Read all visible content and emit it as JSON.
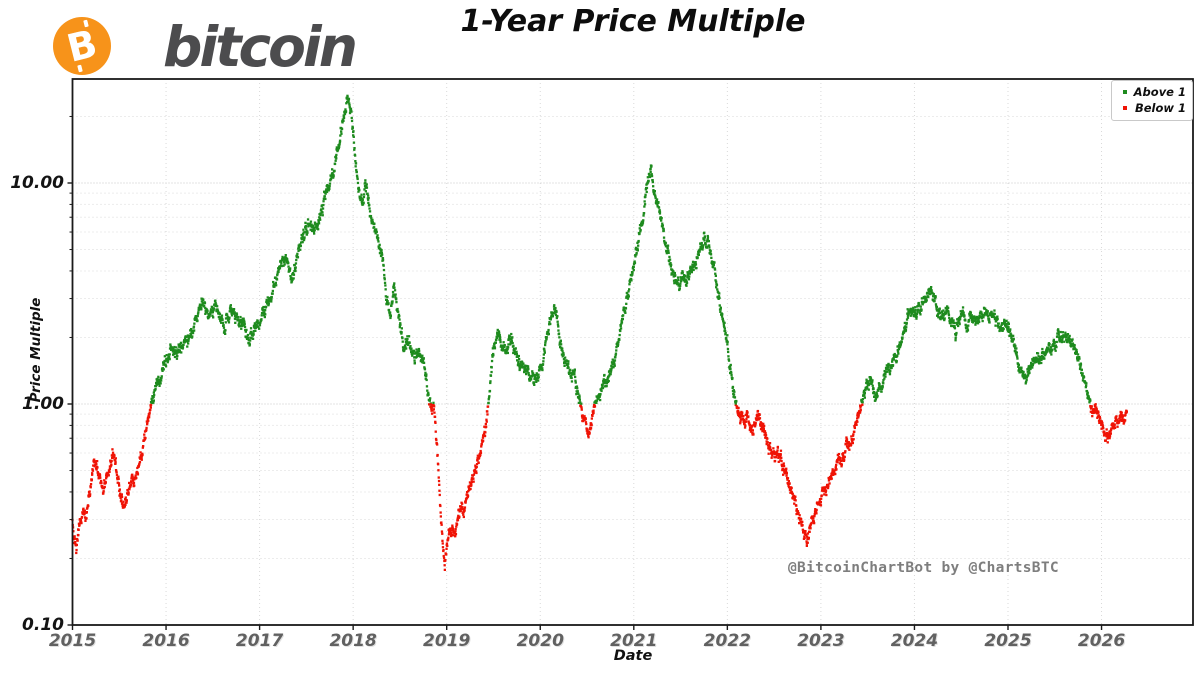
{
  "header": {
    "logo": {
      "symbol": "B",
      "brand": "bitcoin"
    },
    "title": "1-Year Price Multiple"
  },
  "watermark": "@BitcoinChartBot by @ChartsBTC",
  "colors": {
    "green": "#1e8b1e",
    "red": "#ef1305",
    "coin_orange": "#f7931a",
    "brand_text": "#4c4c4e",
    "axis": "#1a1a1a",
    "grid_major": "#c6c6c6",
    "grid_minor": "#d9d9d9",
    "year_label": "#616161",
    "value_label": "#141414",
    "watermark_gray": "#7e7e7e"
  },
  "chart_data": {
    "type": "scatter",
    "title": "1-Year Price Multiple",
    "xlabel": "Date",
    "ylabel": "Price Multiple",
    "y_scale": "log",
    "grid": true,
    "legend_position": "upper right",
    "legend": [
      {
        "label": "Above 1",
        "color": "#1e8b1e"
      },
      {
        "label": "Below 1",
        "color": "#ef1305"
      }
    ],
    "x_ticks": [
      2015,
      2016,
      2017,
      2018,
      2019,
      2020,
      2021,
      2022,
      2023,
      2024,
      2025,
      2026
    ],
    "y_ticks": [
      0.1,
      1.0,
      10.0
    ],
    "y_tick_labels": [
      "0.10",
      "1.00",
      "10.00"
    ],
    "xlim": [
      2015,
      2026.98
    ],
    "ylim": [
      0.1,
      30
    ],
    "series_rule": "point green if multiple >= 1, red if below 1",
    "sampling": "envelope of daily 1-year price-multiple scatter, sampled ~biweekly [year, multiple]",
    "points": [
      [
        2015.0,
        0.3
      ],
      [
        2015.02,
        0.24
      ],
      [
        2015.04,
        0.22
      ],
      [
        2015.06,
        0.27
      ],
      [
        2015.09,
        0.31
      ],
      [
        2015.12,
        0.33
      ],
      [
        2015.15,
        0.31
      ],
      [
        2015.18,
        0.4
      ],
      [
        2015.21,
        0.48
      ],
      [
        2015.24,
        0.56
      ],
      [
        2015.27,
        0.5
      ],
      [
        2015.3,
        0.44
      ],
      [
        2015.33,
        0.42
      ],
      [
        2015.36,
        0.47
      ],
      [
        2015.4,
        0.54
      ],
      [
        2015.43,
        0.59
      ],
      [
        2015.46,
        0.53
      ],
      [
        2015.5,
        0.43
      ],
      [
        2015.53,
        0.37
      ],
      [
        2015.56,
        0.35
      ],
      [
        2015.6,
        0.4
      ],
      [
        2015.63,
        0.45
      ],
      [
        2015.66,
        0.43
      ],
      [
        2015.7,
        0.5
      ],
      [
        2015.74,
        0.6
      ],
      [
        2015.78,
        0.73
      ],
      [
        2015.81,
        0.88
      ],
      [
        2015.84,
        1.02
      ],
      [
        2015.87,
        1.15
      ],
      [
        2015.9,
        1.3
      ],
      [
        2015.93,
        1.25
      ],
      [
        2015.96,
        1.4
      ],
      [
        2016.0,
        1.55
      ],
      [
        2016.04,
        1.75
      ],
      [
        2016.08,
        1.85
      ],
      [
        2016.12,
        1.65
      ],
      [
        2016.16,
        1.75
      ],
      [
        2016.2,
        1.85
      ],
      [
        2016.25,
        2.0
      ],
      [
        2016.3,
        2.2
      ],
      [
        2016.35,
        2.6
      ],
      [
        2016.38,
        2.95
      ],
      [
        2016.42,
        2.6
      ],
      [
        2016.46,
        2.35
      ],
      [
        2016.5,
        2.6
      ],
      [
        2016.54,
        2.75
      ],
      [
        2016.58,
        2.45
      ],
      [
        2016.62,
        2.25
      ],
      [
        2016.66,
        2.5
      ],
      [
        2016.7,
        2.7
      ],
      [
        2016.74,
        2.55
      ],
      [
        2016.78,
        2.4
      ],
      [
        2016.82,
        2.3
      ],
      [
        2016.86,
        2.05
      ],
      [
        2016.9,
        1.95
      ],
      [
        2016.94,
        2.15
      ],
      [
        2016.98,
        2.3
      ],
      [
        2017.02,
        2.45
      ],
      [
        2017.06,
        2.7
      ],
      [
        2017.1,
        2.9
      ],
      [
        2017.15,
        3.4
      ],
      [
        2017.2,
        4.1
      ],
      [
        2017.25,
        4.5
      ],
      [
        2017.3,
        4.3
      ],
      [
        2017.34,
        3.8
      ],
      [
        2017.38,
        4.2
      ],
      [
        2017.42,
        5.0
      ],
      [
        2017.46,
        5.6
      ],
      [
        2017.5,
        6.3
      ],
      [
        2017.54,
        6.8
      ],
      [
        2017.58,
        6.0
      ],
      [
        2017.62,
        6.5
      ],
      [
        2017.66,
        7.5
      ],
      [
        2017.7,
        8.5
      ],
      [
        2017.74,
        9.5
      ],
      [
        2017.78,
        11.0
      ],
      [
        2017.82,
        13.0
      ],
      [
        2017.86,
        16.0
      ],
      [
        2017.9,
        20.0
      ],
      [
        2017.94,
        24.5
      ],
      [
        2017.97,
        21.0
      ],
      [
        2018.0,
        16.5
      ],
      [
        2018.03,
        12.5
      ],
      [
        2018.06,
        9.2
      ],
      [
        2018.1,
        8.0
      ],
      [
        2018.13,
        9.8
      ],
      [
        2018.16,
        8.5
      ],
      [
        2018.2,
        6.8
      ],
      [
        2018.24,
        6.0
      ],
      [
        2018.28,
        5.2
      ],
      [
        2018.32,
        4.4
      ],
      [
        2018.36,
        2.9
      ],
      [
        2018.4,
        2.6
      ],
      [
        2018.43,
        3.3
      ],
      [
        2018.46,
        2.9
      ],
      [
        2018.5,
        2.2
      ],
      [
        2018.54,
        1.8
      ],
      [
        2018.58,
        1.9
      ],
      [
        2018.62,
        1.8
      ],
      [
        2018.66,
        1.6
      ],
      [
        2018.7,
        1.75
      ],
      [
        2018.74,
        1.6
      ],
      [
        2018.78,
        1.3
      ],
      [
        2018.8,
        1.1
      ],
      [
        2018.82,
        1.0
      ],
      [
        2018.84,
        0.9
      ],
      [
        2018.86,
        1.0
      ],
      [
        2018.88,
        0.8
      ],
      [
        2018.9,
        0.6
      ],
      [
        2018.92,
        0.45
      ],
      [
        2018.94,
        0.32
      ],
      [
        2018.96,
        0.23
      ],
      [
        2018.98,
        0.19
      ],
      [
        2019.0,
        0.22
      ],
      [
        2019.03,
        0.26
      ],
      [
        2019.06,
        0.28
      ],
      [
        2019.09,
        0.25
      ],
      [
        2019.12,
        0.31
      ],
      [
        2019.15,
        0.34
      ],
      [
        2019.18,
        0.32
      ],
      [
        2019.21,
        0.37
      ],
      [
        2019.24,
        0.41
      ],
      [
        2019.27,
        0.45
      ],
      [
        2019.3,
        0.5
      ],
      [
        2019.33,
        0.55
      ],
      [
        2019.36,
        0.6
      ],
      [
        2019.39,
        0.68
      ],
      [
        2019.41,
        0.76
      ],
      [
        2019.43,
        0.9
      ],
      [
        2019.45,
        1.05
      ],
      [
        2019.47,
        1.3
      ],
      [
        2019.49,
        1.6
      ],
      [
        2019.51,
        1.85
      ],
      [
        2019.54,
        2.1
      ],
      [
        2019.57,
        2.0
      ],
      [
        2019.6,
        1.8
      ],
      [
        2019.63,
        1.7
      ],
      [
        2019.66,
        1.85
      ],
      [
        2019.69,
        1.95
      ],
      [
        2019.72,
        1.75
      ],
      [
        2019.75,
        1.6
      ],
      [
        2019.78,
        1.5
      ],
      [
        2019.81,
        1.6
      ],
      [
        2019.84,
        1.5
      ],
      [
        2019.87,
        1.4
      ],
      [
        2019.9,
        1.3
      ],
      [
        2019.93,
        1.25
      ],
      [
        2019.96,
        1.35
      ],
      [
        2020.0,
        1.45
      ],
      [
        2020.04,
        1.7
      ],
      [
        2020.08,
        2.1
      ],
      [
        2020.12,
        2.55
      ],
      [
        2020.15,
        2.8
      ],
      [
        2020.18,
        2.4
      ],
      [
        2020.22,
        1.9
      ],
      [
        2020.26,
        1.6
      ],
      [
        2020.3,
        1.45
      ],
      [
        2020.34,
        1.35
      ],
      [
        2020.38,
        1.25
      ],
      [
        2020.42,
        1.05
      ],
      [
        2020.45,
        0.9
      ],
      [
        2020.48,
        0.78
      ],
      [
        2020.51,
        0.73
      ],
      [
        2020.54,
        0.82
      ],
      [
        2020.57,
        0.95
      ],
      [
        2020.6,
        1.05
      ],
      [
        2020.64,
        1.15
      ],
      [
        2020.68,
        1.22
      ],
      [
        2020.72,
        1.3
      ],
      [
        2020.76,
        1.45
      ],
      [
        2020.8,
        1.65
      ],
      [
        2020.84,
        1.95
      ],
      [
        2020.88,
        2.4
      ],
      [
        2020.92,
        2.9
      ],
      [
        2020.96,
        3.4
      ],
      [
        2021.0,
        4.2
      ],
      [
        2021.04,
        5.3
      ],
      [
        2021.08,
        6.5
      ],
      [
        2021.12,
        8.0
      ],
      [
        2021.15,
        10.0
      ],
      [
        2021.18,
        11.5
      ],
      [
        2021.21,
        9.8
      ],
      [
        2021.24,
        8.5
      ],
      [
        2021.28,
        7.0
      ],
      [
        2021.32,
        6.0
      ],
      [
        2021.36,
        5.0
      ],
      [
        2021.4,
        4.2
      ],
      [
        2021.44,
        3.7
      ],
      [
        2021.48,
        3.45
      ],
      [
        2021.52,
        3.8
      ],
      [
        2021.56,
        3.5
      ],
      [
        2021.6,
        4.0
      ],
      [
        2021.64,
        4.4
      ],
      [
        2021.68,
        4.8
      ],
      [
        2021.72,
        5.1
      ],
      [
        2021.76,
        5.5
      ],
      [
        2021.79,
        5.6
      ],
      [
        2021.82,
        5.0
      ],
      [
        2021.85,
        4.3
      ],
      [
        2021.88,
        3.6
      ],
      [
        2021.91,
        3.0
      ],
      [
        2021.94,
        2.5
      ],
      [
        2021.97,
        2.2
      ],
      [
        2022.0,
        1.9
      ],
      [
        2022.03,
        1.45
      ],
      [
        2022.06,
        1.15
      ],
      [
        2022.09,
        1.0
      ],
      [
        2022.12,
        0.9
      ],
      [
        2022.15,
        0.85
      ],
      [
        2022.18,
        0.8
      ],
      [
        2022.21,
        0.88
      ],
      [
        2022.24,
        0.82
      ],
      [
        2022.27,
        0.76
      ],
      [
        2022.3,
        0.83
      ],
      [
        2022.33,
        0.9
      ],
      [
        2022.36,
        0.84
      ],
      [
        2022.39,
        0.76
      ],
      [
        2022.42,
        0.68
      ],
      [
        2022.45,
        0.64
      ],
      [
        2022.48,
        0.6
      ],
      [
        2022.51,
        0.57
      ],
      [
        2022.54,
        0.6
      ],
      [
        2022.57,
        0.56
      ],
      [
        2022.6,
        0.52
      ],
      [
        2022.63,
        0.47
      ],
      [
        2022.66,
        0.43
      ],
      [
        2022.7,
        0.39
      ],
      [
        2022.74,
        0.34
      ],
      [
        2022.78,
        0.3
      ],
      [
        2022.82,
        0.27
      ],
      [
        2022.85,
        0.24
      ],
      [
        2022.88,
        0.27
      ],
      [
        2022.91,
        0.3
      ],
      [
        2022.94,
        0.32
      ],
      [
        2022.97,
        0.35
      ],
      [
        2023.0,
        0.38
      ],
      [
        2023.04,
        0.42
      ],
      [
        2023.08,
        0.45
      ],
      [
        2023.12,
        0.48
      ],
      [
        2023.16,
        0.52
      ],
      [
        2023.2,
        0.56
      ],
      [
        2023.24,
        0.6
      ],
      [
        2023.28,
        0.64
      ],
      [
        2023.32,
        0.68
      ],
      [
        2023.36,
        0.75
      ],
      [
        2023.39,
        0.85
      ],
      [
        2023.42,
        0.95
      ],
      [
        2023.44,
        1.05
      ],
      [
        2023.47,
        1.15
      ],
      [
        2023.5,
        1.25
      ],
      [
        2023.53,
        1.22
      ],
      [
        2023.56,
        1.15
      ],
      [
        2023.6,
        1.12
      ],
      [
        2023.63,
        1.2
      ],
      [
        2023.66,
        1.32
      ],
      [
        2023.69,
        1.45
      ],
      [
        2023.72,
        1.5
      ],
      [
        2023.75,
        1.42
      ],
      [
        2023.78,
        1.55
      ],
      [
        2023.81,
        1.7
      ],
      [
        2023.84,
        1.85
      ],
      [
        2023.87,
        2.05
      ],
      [
        2023.9,
        2.3
      ],
      [
        2023.93,
        2.5
      ],
      [
        2023.96,
        2.6
      ],
      [
        2024.0,
        2.55
      ],
      [
        2024.04,
        2.7
      ],
      [
        2024.08,
        2.9
      ],
      [
        2024.12,
        3.1
      ],
      [
        2024.16,
        3.4
      ],
      [
        2024.2,
        3.1
      ],
      [
        2024.24,
        2.7
      ],
      [
        2024.28,
        2.45
      ],
      [
        2024.32,
        2.55
      ],
      [
        2024.36,
        2.7
      ],
      [
        2024.4,
        2.45
      ],
      [
        2024.44,
        2.1
      ],
      [
        2024.48,
        2.4
      ],
      [
        2024.52,
        2.55
      ],
      [
        2024.56,
        2.15
      ],
      [
        2024.6,
        2.5
      ],
      [
        2024.64,
        2.6
      ],
      [
        2024.68,
        2.4
      ],
      [
        2024.72,
        2.55
      ],
      [
        2024.76,
        2.65
      ],
      [
        2024.8,
        2.45
      ],
      [
        2024.84,
        2.55
      ],
      [
        2024.88,
        2.35
      ],
      [
        2024.92,
        2.25
      ],
      [
        2024.96,
        2.3
      ],
      [
        2025.0,
        2.25
      ],
      [
        2025.04,
        2.0
      ],
      [
        2025.08,
        1.75
      ],
      [
        2025.12,
        1.5
      ],
      [
        2025.16,
        1.32
      ],
      [
        2025.19,
        1.27
      ],
      [
        2025.22,
        1.45
      ],
      [
        2025.26,
        1.6
      ],
      [
        2025.3,
        1.68
      ],
      [
        2025.34,
        1.58
      ],
      [
        2025.38,
        1.7
      ],
      [
        2025.42,
        1.65
      ],
      [
        2025.46,
        1.78
      ],
      [
        2025.5,
        1.9
      ],
      [
        2025.54,
        2.0
      ],
      [
        2025.58,
        2.05
      ],
      [
        2025.62,
        1.95
      ],
      [
        2025.66,
        2.05
      ],
      [
        2025.7,
        1.9
      ],
      [
        2025.74,
        1.7
      ],
      [
        2025.78,
        1.45
      ],
      [
        2025.82,
        1.2
      ],
      [
        2025.85,
        1.05
      ],
      [
        2025.88,
        0.95
      ],
      [
        2025.91,
        0.9
      ],
      [
        2025.94,
        0.93
      ],
      [
        2025.97,
        0.9
      ],
      [
        2026.0,
        0.84
      ],
      [
        2026.03,
        0.76
      ],
      [
        2026.06,
        0.7
      ],
      [
        2026.09,
        0.74
      ],
      [
        2026.12,
        0.8
      ],
      [
        2026.15,
        0.86
      ],
      [
        2026.18,
        0.84
      ],
      [
        2026.21,
        0.88
      ],
      [
        2026.24,
        0.9
      ],
      [
        2026.27,
        0.92
      ]
    ]
  }
}
